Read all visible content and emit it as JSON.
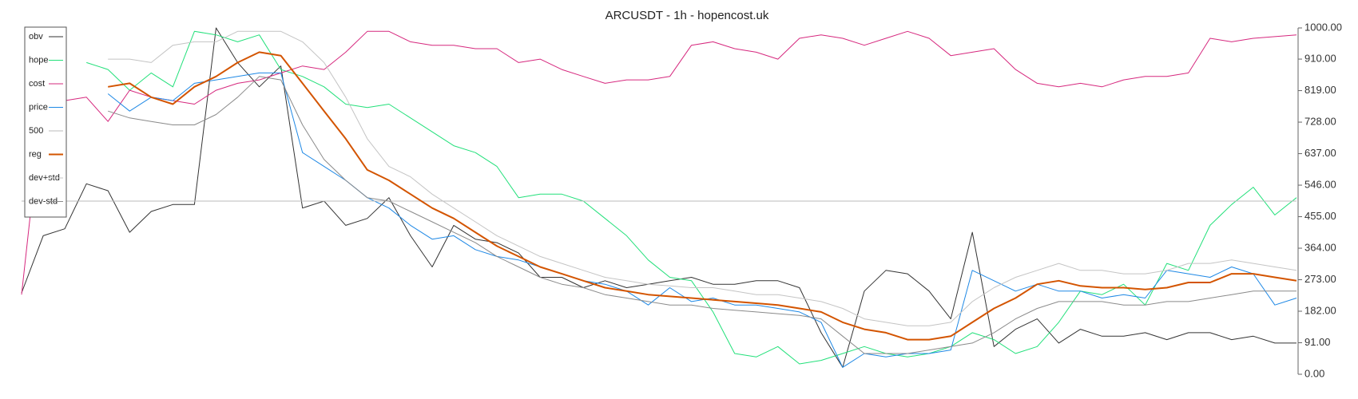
{
  "chart_data": {
    "type": "line",
    "title": "ARCUSDT - 1h - hopencost.uk",
    "legend": "upper left",
    "ylim": [
      0,
      1000
    ],
    "yticks": [
      {
        "value": 0,
        "label": "0.00"
      },
      {
        "value": 91,
        "label": "91.00"
      },
      {
        "value": 182,
        "label": "182.00"
      },
      {
        "value": 273,
        "label": "273.00"
      },
      {
        "value": 364,
        "label": "364.00"
      },
      {
        "value": 455,
        "label": "455.00"
      },
      {
        "value": 546,
        "label": "546.00"
      },
      {
        "value": 637,
        "label": "637.00"
      },
      {
        "value": 728,
        "label": "728.00"
      },
      {
        "value": 819,
        "label": "819.00"
      },
      {
        "value": 910,
        "label": "910.00"
      },
      {
        "value": 1000,
        "label": "1000.00"
      }
    ],
    "series": [
      {
        "name": "obv",
        "color": "#333333",
        "width": 1,
        "values": [
          235,
          400,
          420,
          550,
          530,
          410,
          470,
          490,
          490,
          1000,
          900,
          830,
          890,
          480,
          500,
          430,
          450,
          510,
          400,
          310,
          430,
          390,
          380,
          350,
          280,
          280,
          250,
          270,
          250,
          260,
          270,
          280,
          260,
          260,
          270,
          270,
          250,
          120,
          20,
          240,
          300,
          290,
          240,
          160,
          410,
          80,
          130,
          160,
          90,
          130,
          110,
          110,
          120,
          100,
          120,
          120,
          100,
          110,
          90,
          90
        ]
      },
      {
        "name": "hope",
        "color": "#22e07a",
        "width": 1,
        "values": [
          null,
          null,
          null,
          900,
          880,
          820,
          870,
          830,
          990,
          980,
          960,
          980,
          880,
          860,
          830,
          780,
          770,
          780,
          740,
          700,
          660,
          640,
          600,
          510,
          520,
          520,
          500,
          450,
          400,
          330,
          280,
          270,
          180,
          60,
          50,
          80,
          30,
          40,
          60,
          80,
          60,
          50,
          60,
          80,
          120,
          100,
          60,
          80,
          150,
          240,
          230,
          260,
          200,
          320,
          300,
          430,
          490,
          540,
          460,
          510
        ]
      },
      {
        "name": "cost",
        "color": "#d6287e",
        "width": 1,
        "values": [
          230,
          800,
          790,
          800,
          730,
          820,
          800,
          790,
          780,
          820,
          840,
          850,
          870,
          890,
          880,
          930,
          990,
          990,
          960,
          950,
          950,
          940,
          940,
          900,
          910,
          880,
          860,
          840,
          850,
          850,
          860,
          950,
          960,
          940,
          930,
          910,
          970,
          980,
          970,
          950,
          970,
          990,
          970,
          920,
          930,
          940,
          880,
          840,
          830,
          840,
          830,
          850,
          860,
          860,
          870,
          970,
          960,
          970,
          975,
          980
        ]
      },
      {
        "name": "price",
        "color": "#1e88e5",
        "width": 1,
        "values": [
          null,
          null,
          null,
          null,
          810,
          760,
          800,
          790,
          840,
          850,
          860,
          870,
          870,
          640,
          600,
          560,
          510,
          480,
          430,
          390,
          400,
          360,
          340,
          330,
          310,
          290,
          270,
          260,
          240,
          200,
          250,
          210,
          220,
          200,
          200,
          190,
          180,
          150,
          20,
          60,
          50,
          60,
          60,
          70,
          300,
          270,
          240,
          260,
          240,
          240,
          220,
          230,
          220,
          300,
          290,
          280,
          310,
          290,
          200,
          220
        ]
      },
      {
        "name": "500",
        "color": "#bbbbbb",
        "width": 1,
        "values": [
          500,
          500,
          500,
          500,
          500,
          500,
          500,
          500,
          500,
          500,
          500,
          500,
          500,
          500,
          500,
          500,
          500,
          500,
          500,
          500,
          500,
          500,
          500,
          500,
          500,
          500,
          500,
          500,
          500,
          500,
          500,
          500,
          500,
          500,
          500,
          500,
          500,
          500,
          500,
          500,
          500,
          500,
          500,
          500,
          500,
          500,
          500,
          500,
          500,
          500,
          500,
          500,
          500,
          500,
          500,
          500,
          500,
          500,
          500,
          500
        ]
      },
      {
        "name": "reg",
        "color": "#d35400",
        "width": 2,
        "values": [
          null,
          null,
          null,
          null,
          830,
          840,
          800,
          780,
          830,
          860,
          900,
          930,
          920,
          840,
          760,
          680,
          590,
          560,
          520,
          480,
          450,
          410,
          370,
          340,
          310,
          290,
          270,
          250,
          240,
          230,
          225,
          220,
          215,
          210,
          205,
          200,
          190,
          180,
          150,
          130,
          120,
          100,
          100,
          110,
          150,
          190,
          220,
          260,
          270,
          255,
          250,
          250,
          245,
          250,
          265,
          265,
          290,
          290,
          280,
          270
        ]
      },
      {
        "name": "dev+std",
        "color": "#c4c4c4",
        "width": 1,
        "values": [
          null,
          null,
          null,
          null,
          910,
          910,
          900,
          950,
          960,
          960,
          990,
          990,
          990,
          960,
          900,
          800,
          680,
          600,
          570,
          520,
          480,
          440,
          400,
          370,
          340,
          320,
          300,
          280,
          270,
          260,
          255,
          250,
          250,
          240,
          230,
          230,
          220,
          210,
          190,
          160,
          150,
          140,
          140,
          150,
          210,
          250,
          280,
          300,
          320,
          300,
          300,
          290,
          290,
          300,
          320,
          320,
          330,
          320,
          310,
          300
        ]
      },
      {
        "name": "dev-std",
        "color": "#8a8a8a",
        "width": 1,
        "values": [
          null,
          null,
          null,
          null,
          760,
          740,
          730,
          720,
          720,
          750,
          800,
          860,
          850,
          720,
          620,
          560,
          510,
          500,
          470,
          440,
          410,
          380,
          340,
          310,
          280,
          260,
          250,
          230,
          220,
          210,
          200,
          200,
          190,
          185,
          180,
          175,
          170,
          160,
          110,
          60,
          60,
          60,
          70,
          80,
          90,
          120,
          160,
          190,
          210,
          210,
          210,
          200,
          200,
          210,
          210,
          220,
          230,
          240,
          240,
          240
        ]
      }
    ]
  }
}
